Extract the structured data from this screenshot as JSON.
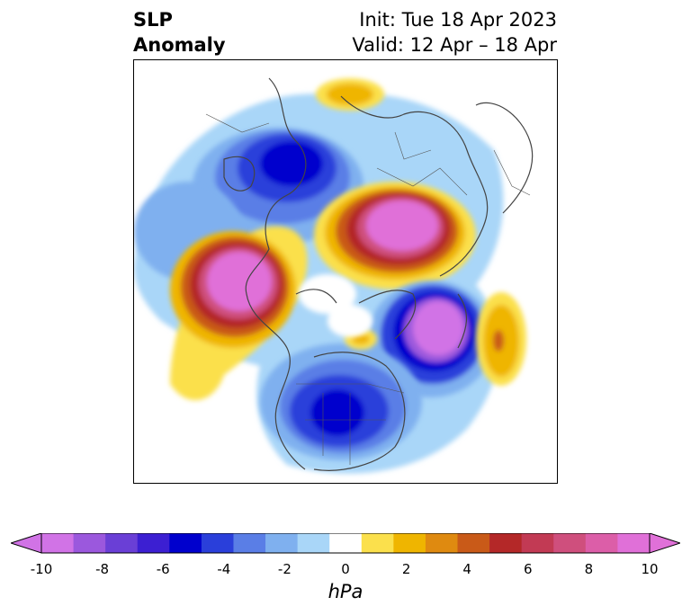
{
  "title": {
    "left_line1": "SLP",
    "left_line2": "Anomaly",
    "right_line1": "Init: Tue 18 Apr 2023",
    "right_line2": "Valid: 12 Apr – 18 Apr"
  },
  "colorbar": {
    "unit": "hPa",
    "ticks": [
      "-10",
      "-8",
      "-6",
      "-4",
      "-2",
      "0",
      "2",
      "4",
      "6",
      "8",
      "10"
    ],
    "colors": [
      "#d173e6",
      "#9b58dd",
      "#6a3fd6",
      "#3c1fd2",
      "#0000cd",
      "#2a3fda",
      "#5a7ee6",
      "#7fb0ef",
      "#a9d6f8",
      "#ffffff",
      "#fbe04c",
      "#efb500",
      "#df8a10",
      "#c95a18",
      "#b42828",
      "#c23a54",
      "#cf4f7d",
      "#dc5ea8",
      "#e070d8"
    ],
    "extend_low_color": "#d173e6",
    "extend_high_color": "#e070d8"
  },
  "map": {
    "projection": "north-polar-stereographic",
    "field": "sea-level-pressure-anomaly"
  }
}
